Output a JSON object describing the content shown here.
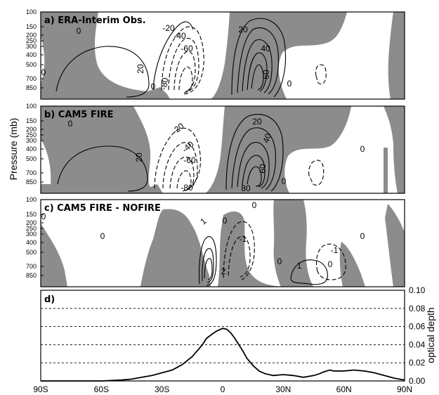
{
  "ylabel": "Pressure (mb)",
  "pressure_ticks": [
    "100",
    "150",
    "200",
    "250",
    "300",
    "400",
    "500",
    "700",
    "850"
  ],
  "x_ticks": [
    "90S",
    "60S",
    "30S",
    "0",
    "30N",
    "60N",
    "90N"
  ],
  "panels": [
    {
      "title": "a) ERA-Interim Obs.",
      "contour_labels": [
        "0",
        "20",
        "-20",
        "-40",
        "-60",
        "-80",
        "20",
        "40",
        "60",
        "0",
        "0",
        "0"
      ]
    },
    {
      "title": "b) CAM5 FIRE",
      "contour_labels": [
        "0",
        "20",
        "-20",
        "-40",
        "-60",
        "-80",
        "20",
        "40",
        "60",
        "80",
        "0",
        "0"
      ]
    },
    {
      "title": "c) CAM5 FIRE - NOFIRE",
      "contour_labels": [
        "0",
        "0",
        "1",
        "0",
        "2",
        "-1",
        "0",
        "1",
        "0",
        "0",
        "0",
        "-1"
      ]
    }
  ],
  "colors": {
    "shading": "#8c8c8c",
    "line": "#000000",
    "grid": "#000000"
  },
  "chart_data": {
    "type": "line",
    "title": "d)",
    "ylabel": "optical depth",
    "xlim": [
      -90,
      90
    ],
    "ylim": [
      0,
      0.1
    ],
    "y_ticks": [
      "0.00",
      "0.02",
      "0.04",
      "0.06",
      "0.08",
      "0.10"
    ],
    "grid": "dashed horizontal",
    "x": [
      -90,
      -70,
      -60,
      -50,
      -45,
      -40,
      -35,
      -30,
      -25,
      -20,
      -15,
      -10,
      -8,
      -5,
      -3,
      0,
      2,
      4,
      6,
      8,
      10,
      12,
      15,
      18,
      21,
      25,
      30,
      35,
      40,
      45,
      48,
      50,
      53,
      55,
      60,
      65,
      70,
      75,
      80,
      85,
      90
    ],
    "values": [
      0,
      0,
      0,
      0.001,
      0.002,
      0.004,
      0.006,
      0.009,
      0.012,
      0.018,
      0.027,
      0.04,
      0.047,
      0.052,
      0.055,
      0.058,
      0.057,
      0.053,
      0.047,
      0.04,
      0.033,
      0.025,
      0.017,
      0.011,
      0.008,
      0.006,
      0.007,
      0.006,
      0.004,
      0.006,
      0.008,
      0.01,
      0.012,
      0.011,
      0.011,
      0.012,
      0.011,
      0.009,
      0.006,
      0.003,
      0.001
    ]
  }
}
